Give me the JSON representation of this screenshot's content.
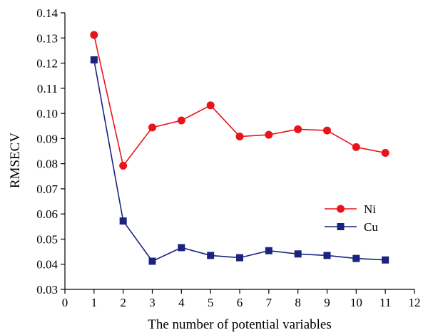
{
  "chart_data": {
    "type": "line",
    "title": "",
    "xlabel": "The number of potential variables",
    "ylabel": "RMSECV",
    "xlim": [
      0,
      12
    ],
    "ylim": [
      0.03,
      0.14
    ],
    "xticks": [
      "0",
      "1",
      "2",
      "3",
      "4",
      "5",
      "6",
      "7",
      "8",
      "9",
      "10",
      "11",
      "12"
    ],
    "yticks": [
      "0.03",
      "0.04",
      "0.05",
      "0.06",
      "0.07",
      "0.08",
      "0.09",
      "0.10",
      "0.11",
      "0.12",
      "0.13",
      "0.14"
    ],
    "grid": false,
    "legend_position": "right-center",
    "x": [
      1,
      2,
      3,
      4,
      5,
      6,
      7,
      8,
      9,
      10,
      11
    ],
    "series": [
      {
        "name": "Ni",
        "color": "#e8141c",
        "marker": "circle",
        "values": [
          0.1312,
          0.0792,
          0.0944,
          0.0972,
          0.1032,
          0.0908,
          0.0915,
          0.0937,
          0.0932,
          0.0866,
          0.0843
        ]
      },
      {
        "name": "Cu",
        "color": "#1a237e",
        "marker": "square",
        "values": [
          0.1213,
          0.0572,
          0.0412,
          0.0466,
          0.0435,
          0.0426,
          0.0454,
          0.0441,
          0.0435,
          0.0423,
          0.0417
        ]
      }
    ]
  }
}
